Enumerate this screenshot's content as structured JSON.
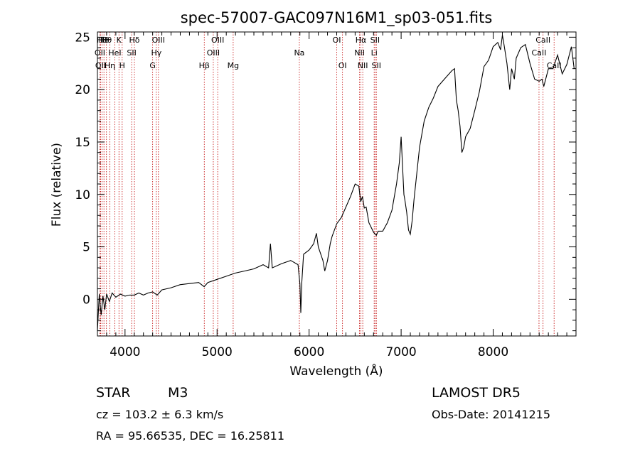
{
  "chart_data": {
    "type": "line",
    "title": "spec-57007-GAC097N16M1_sp03-051.fits",
    "xlabel": "Wavelength (Å)",
    "ylabel": "Flux (relative)",
    "xlim": [
      3700,
      8900
    ],
    "ylim": [
      -3.5,
      25.5
    ],
    "x_ticks": [
      "4000",
      "5000",
      "6000",
      "7000",
      "8000"
    ],
    "x_tick_values": [
      4000,
      5000,
      6000,
      7000,
      8000
    ],
    "y_ticks": [
      "0",
      "5",
      "10",
      "15",
      "20",
      "25"
    ],
    "y_tick_values": [
      0,
      5,
      10,
      15,
      20,
      25
    ],
    "series": [
      {
        "x": [
          3700,
          3720,
          3740,
          3760,
          3780,
          3800,
          3830,
          3860,
          3900,
          3950,
          4000,
          4050,
          4100,
          4150,
          4200,
          4250,
          4300,
          4350,
          4400,
          4500,
          4600,
          4700,
          4800,
          4860,
          4900,
          5000,
          5100,
          5200,
          5300,
          5400,
          5500,
          5560,
          5580,
          5600,
          5700,
          5800,
          5880,
          5900,
          5910,
          5920,
          5940,
          6000,
          6050,
          6080,
          6100,
          6150,
          6170,
          6200,
          6230,
          6250,
          6300,
          6350,
          6400,
          6450,
          6500,
          6540,
          6560,
          6580,
          6600,
          6620,
          6650,
          6700,
          6730,
          6750,
          6800,
          6850,
          6900,
          6950,
          6980,
          7000,
          7030,
          7040,
          7060,
          7080,
          7100,
          7120,
          7140,
          7170,
          7200,
          7250,
          7300,
          7350,
          7400,
          7450,
          7500,
          7550,
          7580,
          7600,
          7620,
          7640,
          7660,
          7680,
          7700,
          7750,
          7800,
          7850,
          7900,
          7950,
          8000,
          8050,
          8080,
          8100,
          8120,
          8150,
          8180,
          8200,
          8230,
          8250,
          8300,
          8350,
          8400,
          8450,
          8500,
          8530,
          8550,
          8600,
          8650,
          8700,
          8750,
          8800,
          8850,
          8880
        ],
        "y": [
          -3.0,
          0.5,
          -1.5,
          0.3,
          -1.0,
          0.5,
          -0.2,
          0.6,
          0.2,
          0.5,
          0.3,
          0.4,
          0.4,
          0.6,
          0.4,
          0.6,
          0.7,
          0.4,
          0.9,
          1.1,
          1.4,
          1.5,
          1.6,
          1.2,
          1.6,
          1.9,
          2.2,
          2.5,
          2.7,
          2.9,
          3.3,
          3.0,
          5.3,
          3.0,
          3.4,
          3.7,
          3.3,
          1.5,
          -1.3,
          1.5,
          4.3,
          4.7,
          5.3,
          6.3,
          5.0,
          3.7,
          2.7,
          3.7,
          5.3,
          6.0,
          7.2,
          7.8,
          8.8,
          9.8,
          11.0,
          10.8,
          9.3,
          9.8,
          8.7,
          8.8,
          7.3,
          6.4,
          6.1,
          6.5,
          6.5,
          7.3,
          8.5,
          11.0,
          13.0,
          15.5,
          10.0,
          9.5,
          8.3,
          6.6,
          6.2,
          7.5,
          9.5,
          12.0,
          14.5,
          17.0,
          18.3,
          19.2,
          20.3,
          20.8,
          21.3,
          21.8,
          22.0,
          19.0,
          18.0,
          16.5,
          14.0,
          14.5,
          15.5,
          16.3,
          18.0,
          19.8,
          22.2,
          22.8,
          24.1,
          24.5,
          23.8,
          25.2,
          24.2,
          22.5,
          20.0,
          22.0,
          21.0,
          23.0,
          24.0,
          24.3,
          22.5,
          21.0,
          20.8,
          21.0,
          20.3,
          22.0,
          22.0,
          23.3,
          21.5,
          22.4,
          24.1,
          22.0
        ]
      }
    ],
    "lines": [
      {
        "x": 3727,
        "label": "OII",
        "row": 2
      },
      {
        "x": 3734,
        "label": "OII",
        "row": 3
      },
      {
        "x": 3750,
        "label": "Hθ",
        "row": 1
      },
      {
        "x": 3771,
        "label": "Hθ",
        "row": 1
      },
      {
        "x": 3798,
        "label": "Hθ",
        "row": 1
      },
      {
        "x": 3835,
        "label": "Hη",
        "row": 3
      },
      {
        "x": 3889,
        "label": "HeI",
        "row": 2
      },
      {
        "x": 3934,
        "label": "K",
        "row": 1
      },
      {
        "x": 3969,
        "label": "H",
        "row": 3
      },
      {
        "x": 4072,
        "label": "SII",
        "row": 2
      },
      {
        "x": 4102,
        "label": "Hδ",
        "row": 1
      },
      {
        "x": 4300,
        "label": "G",
        "row": 3
      },
      {
        "x": 4340,
        "label": "Hγ",
        "row": 2
      },
      {
        "x": 4363,
        "label": "OIII",
        "row": 1
      },
      {
        "x": 4861,
        "label": "Hβ",
        "row": 3
      },
      {
        "x": 4959,
        "label": "OIII",
        "row": 2
      },
      {
        "x": 5007,
        "label": "OIII",
        "row": 1
      },
      {
        "x": 5175,
        "label": "Mg",
        "row": 3
      },
      {
        "x": 5894,
        "label": "Na",
        "row": 2
      },
      {
        "x": 6300,
        "label": "OI",
        "row": 1
      },
      {
        "x": 6363,
        "label": "OI",
        "row": 3
      },
      {
        "x": 6548,
        "label": "NII",
        "row": 2
      },
      {
        "x": 6563,
        "label": "Hα",
        "row": 1
      },
      {
        "x": 6583,
        "label": "NII",
        "row": 3
      },
      {
        "x": 6707,
        "label": "Li",
        "row": 2
      },
      {
        "x": 6716,
        "label": "SII",
        "row": 1
      },
      {
        "x": 6731,
        "label": "SII",
        "row": 3
      },
      {
        "x": 8498,
        "label": "CaII",
        "row": 2
      },
      {
        "x": 8542,
        "label": "CaII",
        "row": 1
      },
      {
        "x": 8662,
        "label": "CaII",
        "row": 3
      }
    ]
  },
  "info": {
    "class": "STAR",
    "subclass": "M3",
    "survey": "LAMOST DR5",
    "cz": "cz = 103.2 ± 6.3 km/s",
    "obs_date": "Obs-Date: 20141215",
    "radec": "RA =  95.66535, DEC =  16.25811"
  },
  "colors": {
    "axes": "#000000",
    "spectrum": "#000000",
    "line_marker": "#c00000"
  }
}
